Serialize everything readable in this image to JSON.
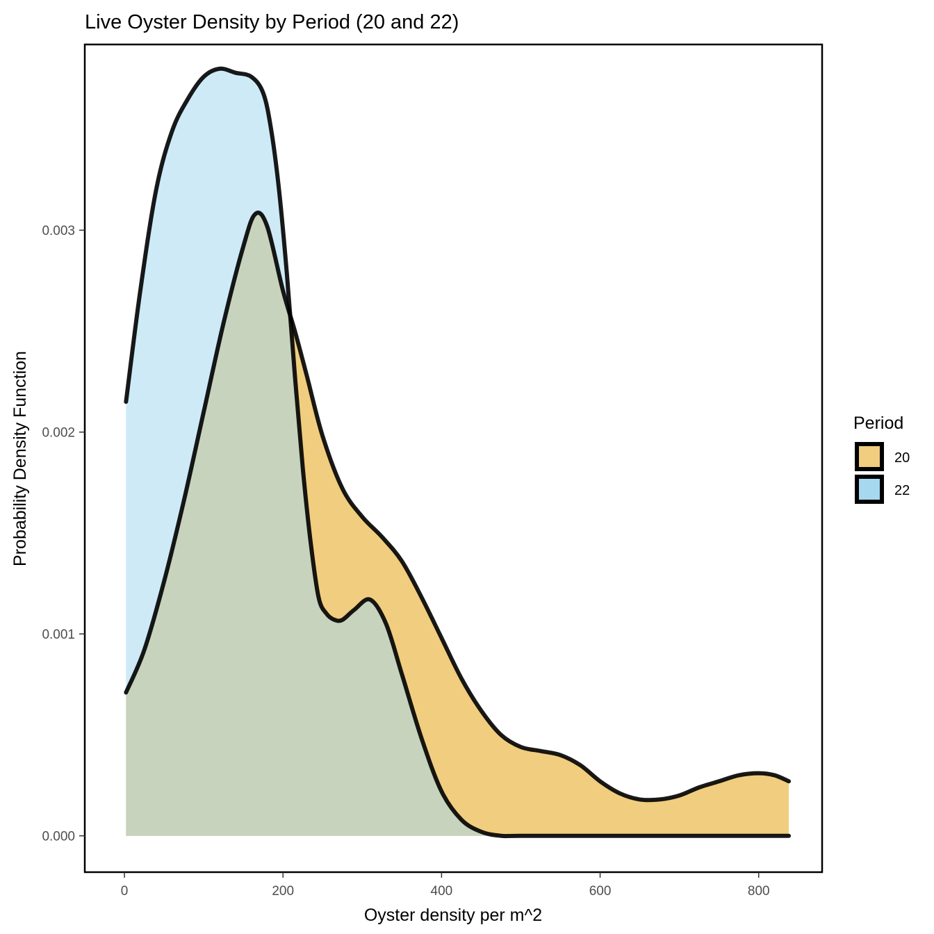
{
  "chart_data": {
    "type": "area",
    "title": "Live Oyster Density by Period (20 and 22)",
    "xlabel": "Oyster density per m^2",
    "ylabel": "Probability Density Function",
    "xlim": [
      -50,
      880
    ],
    "ylim": [
      -0.00018,
      0.00392
    ],
    "x_ticks": [
      0,
      200,
      400,
      600,
      800
    ],
    "x_tick_labels": [
      "0",
      "200",
      "400",
      "600",
      "800"
    ],
    "y_ticks": [
      0.0,
      0.001,
      0.002,
      0.003
    ],
    "y_tick_labels": [
      "0.000",
      "0.001",
      "0.002",
      "0.003"
    ],
    "grid": false,
    "legend": {
      "title": "Period",
      "position": "right"
    },
    "series": [
      {
        "name": "20",
        "color": "#f0cd7f",
        "outline": "#000000",
        "x": [
          2,
          25,
          50,
          75,
          100,
          125,
          150,
          165,
          180,
          200,
          215,
          230,
          250,
          275,
          300,
          325,
          350,
          375,
          400,
          425,
          450,
          475,
          500,
          525,
          550,
          575,
          600,
          625,
          650,
          675,
          700,
          725,
          750,
          775,
          800,
          820,
          838
        ],
        "y": [
          0.00071,
          0.00092,
          0.00126,
          0.00166,
          0.0021,
          0.00254,
          0.00292,
          0.00308,
          0.00302,
          0.0027,
          0.0025,
          0.00228,
          0.00198,
          0.00172,
          0.00158,
          0.00148,
          0.00136,
          0.00118,
          0.00098,
          0.00078,
          0.00062,
          0.0005,
          0.00044,
          0.00042,
          0.0004,
          0.00035,
          0.00027,
          0.00021,
          0.00018,
          0.00018,
          0.0002,
          0.00024,
          0.00027,
          0.0003,
          0.00031,
          0.0003,
          0.00027
        ]
      },
      {
        "name": "22",
        "color": "#a6d8f0",
        "outline": "#000000",
        "x": [
          2,
          20,
          40,
          60,
          80,
          100,
          120,
          140,
          160,
          175,
          185,
          195,
          205,
          215,
          225,
          235,
          245,
          255,
          265,
          275,
          290,
          310,
          330,
          350,
          375,
          400,
          425,
          450,
          475,
          500,
          600,
          700,
          800,
          838
        ],
        "y": [
          0.00215,
          0.0027,
          0.0032,
          0.00349,
          0.00365,
          0.00376,
          0.0038,
          0.00378,
          0.00376,
          0.00368,
          0.0035,
          0.0032,
          0.00278,
          0.00228,
          0.00182,
          0.00145,
          0.00118,
          0.0011,
          0.00107,
          0.00107,
          0.00112,
          0.00117,
          0.00105,
          0.0008,
          0.00048,
          0.00022,
          8e-05,
          2e-05,
          0.0,
          0.0,
          0.0,
          0.0,
          0.0,
          0.0
        ]
      }
    ]
  }
}
